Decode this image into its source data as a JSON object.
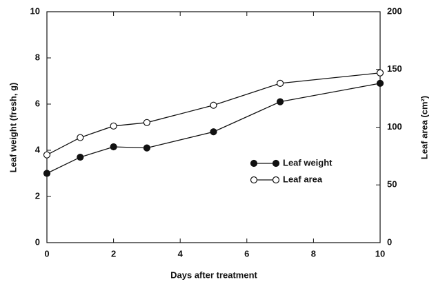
{
  "chart_data": {
    "type": "line",
    "xlabel": "Days after treatment",
    "ylabel": "Leaf weight (fresh, g)",
    "y2label": "Leaf area (cm²)",
    "x": [
      0,
      1,
      2,
      3,
      5,
      7,
      10
    ],
    "xlim": [
      0,
      10
    ],
    "xticks": [
      0,
      2,
      4,
      6,
      8,
      10
    ],
    "ylim": [
      0,
      10
    ],
    "yticks": [
      0,
      2,
      4,
      6,
      8,
      10
    ],
    "y2lim": [
      0,
      200
    ],
    "y2ticks": [
      0,
      50,
      100,
      150,
      200
    ],
    "series": [
      {
        "name": "Leaf weight",
        "color": "#111111",
        "marker": "filled",
        "values": [
          3.0,
          3.7,
          4.15,
          4.1,
          4.8,
          6.1,
          6.9
        ]
      },
      {
        "name": "Leaf area",
        "color": "#111111",
        "marker": "open",
        "axis": "y2",
        "values": [
          76,
          91,
          101,
          104,
          119,
          138,
          147
        ]
      }
    ],
    "legend": "center-right"
  }
}
